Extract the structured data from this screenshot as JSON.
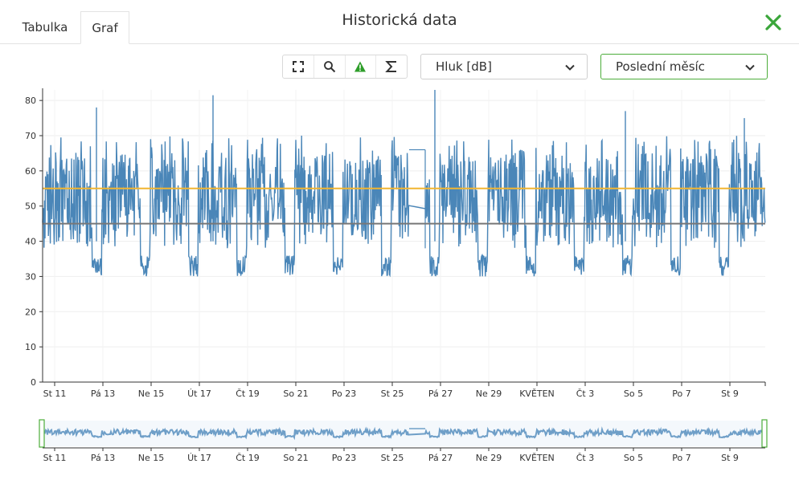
{
  "tabs": [
    {
      "label": "Tabulka",
      "active": false
    },
    {
      "label": "Graf",
      "active": true
    }
  ],
  "title": "Historická data",
  "toolbar": {
    "icons": [
      "fullscreen-icon",
      "search-icon",
      "warning-icon",
      "sigma-icon"
    ],
    "warning_color": "#2e9e2a"
  },
  "metric_select": {
    "value": "Hluk [dB]"
  },
  "period_select": {
    "value": "Poslední měsíc"
  },
  "colors": {
    "series": "#4a86b8",
    "threshold_high": "#f2b531",
    "threshold_low": "#777777",
    "accent_green": "#4cad3a"
  },
  "chart_data": {
    "type": "line",
    "y_ticks": [
      "0",
      "10",
      "20",
      "30",
      "40",
      "50",
      "60",
      "70",
      "80"
    ],
    "ylim": [
      0,
      83
    ],
    "x_ticks": [
      "St 11",
      "Pá 13",
      "Ne 15",
      "Út 17",
      "Čt 19",
      "So 21",
      "Po 23",
      "St 25",
      "Pá 27",
      "Ne 29",
      "KVĚTEN",
      "Čt 3",
      "So 5",
      "Po 7",
      "St 9"
    ],
    "navigator_x_ticks": [
      "St 11",
      "Pá 13",
      "Ne 15",
      "Út 17",
      "Čt 19",
      "So 21",
      "Po 23",
      "St 25",
      "Pá 27",
      "Ne 29",
      "KVĚTEN",
      "Čt 3",
      "So 5",
      "Po 7",
      "St 9"
    ],
    "threshold_high": 55,
    "threshold_low": 45,
    "series_range": {
      "min": 30,
      "max": 83
    },
    "gap_value": 66,
    "grid": true
  }
}
